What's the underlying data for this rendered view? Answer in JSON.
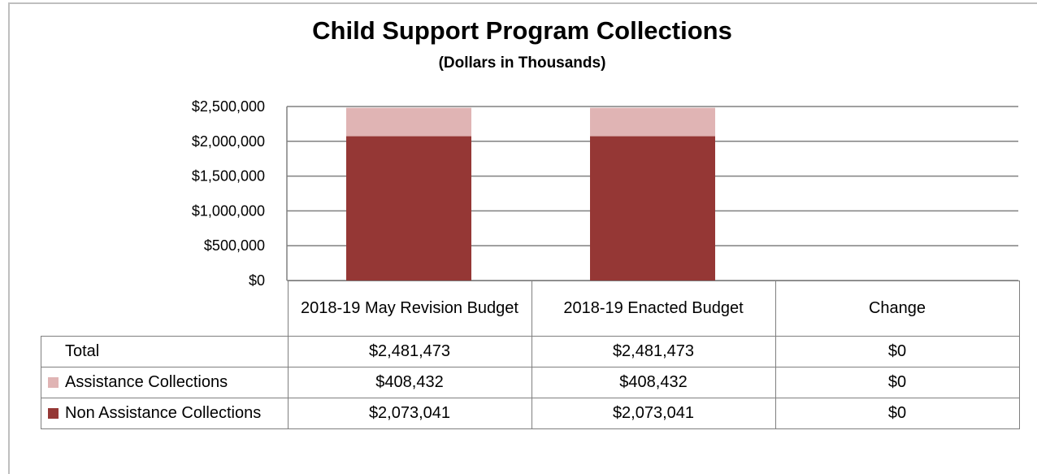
{
  "chart_data": {
    "type": "bar",
    "stacked": true,
    "title": "Child Support Program Collections",
    "subtitle": "(Dollars in Thousands)",
    "categories": [
      "2018-19 May Revision Budget",
      "2018-19 Enacted Budget",
      "Change"
    ],
    "series": [
      {
        "name": "Non Assistance Collections",
        "values": [
          2073041,
          2073041,
          0
        ],
        "color": "#953735"
      },
      {
        "name": "Assistance Collections",
        "values": [
          408432,
          408432,
          0
        ],
        "color": "#e0b4b4"
      }
    ],
    "ylim": [
      0,
      2500000
    ],
    "yticks": [
      0,
      500000,
      1000000,
      1500000,
      2000000,
      2500000
    ],
    "ytick_labels": [
      "$0",
      "$500,000",
      "$1,000,000",
      "$1,500,000",
      "$2,000,000",
      "$2,500,000"
    ],
    "grid": true,
    "legend": "data table"
  },
  "table": {
    "col_headers": [
      "2018-19 May Revision Budget",
      "2018-19 Enacted Budget",
      "Change"
    ],
    "rows": [
      {
        "label": "Total",
        "values": [
          "$2,481,473",
          "$2,481,473",
          "$0"
        ]
      },
      {
        "label": "Assistance Collections",
        "values": [
          "$408,432",
          "$408,432",
          "$0"
        ]
      },
      {
        "label": "Non Assistance Collections",
        "values": [
          "$2,073,041",
          "$2,073,041",
          "$0"
        ]
      }
    ]
  }
}
